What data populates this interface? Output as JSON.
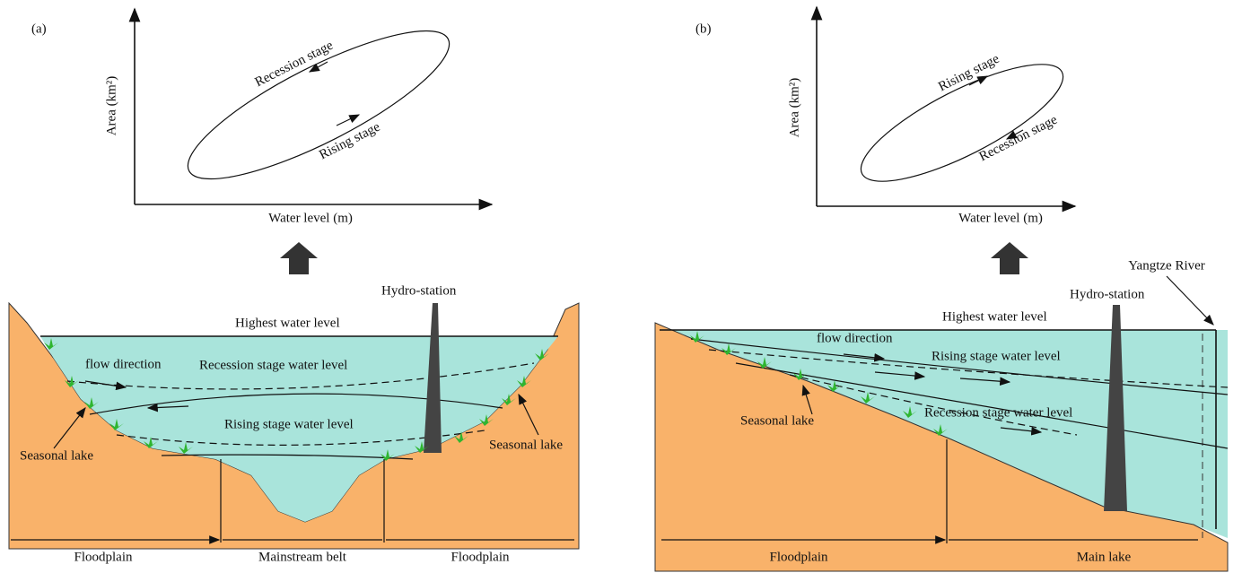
{
  "panels": [
    {
      "label": "(a)",
      "graph": {
        "y_axis_label": "Area (km²)",
        "x_axis_label": "Water level (m)",
        "loop_labels": [
          "Recession stage",
          "Rising stage"
        ]
      },
      "section": {
        "hydro_station": "Hydro-station",
        "highest_level": "Highest water level",
        "flow_direction": "flow direction",
        "recession_level": "Recession stage water level",
        "rising_level": "Rising stage water level",
        "seasonal_lakes": [
          "Seasonal lake",
          "Seasonal lake"
        ],
        "zones": [
          "Floodplain",
          "Mainstream belt",
          "Floodplain"
        ]
      }
    },
    {
      "label": "(b)",
      "graph": {
        "y_axis_label": "Area (km²)",
        "x_axis_label": "Water level (m)",
        "loop_labels": [
          "Rising stage",
          "Recession stage"
        ]
      },
      "section": {
        "river": "Yangtze River",
        "hydro_station": "Hydro-station",
        "highest_level": "Highest water level",
        "flow_direction": "flow direction",
        "rising_level": "Rising stage water level",
        "recession_level": "Recession stage water level",
        "seasonal_lakes": [
          "Seasonal lake"
        ],
        "zones": [
          "Floodplain",
          "Main lake"
        ]
      }
    }
  ]
}
